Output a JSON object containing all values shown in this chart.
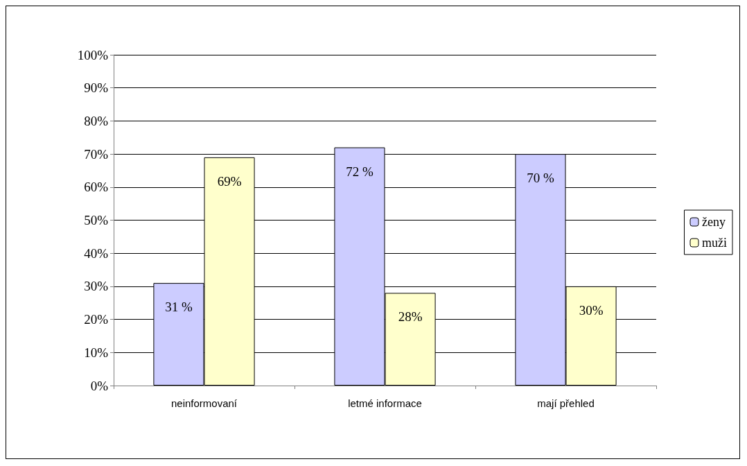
{
  "chart_data": {
    "type": "bar",
    "categories": [
      "neinformovaní",
      "letmé informace",
      "mají přehled"
    ],
    "series": [
      {
        "name": "ženy",
        "color": "#ccccff",
        "values": [
          31,
          72,
          70
        ],
        "value_labels": [
          "31 %",
          "72 %",
          "70 %"
        ]
      },
      {
        "name": "muži",
        "color": "#ffffcc",
        "values": [
          69,
          28,
          30
        ],
        "value_labels": [
          "69%",
          "28%",
          "30%"
        ]
      }
    ],
    "ylim": [
      0,
      100
    ],
    "yticks": [
      {
        "value": 0,
        "label": "0%"
      },
      {
        "value": 10,
        "label": "10%"
      },
      {
        "value": 20,
        "label": "20%"
      },
      {
        "value": 30,
        "label": "30%"
      },
      {
        "value": 40,
        "label": "40%"
      },
      {
        "value": 50,
        "label": "50%"
      },
      {
        "value": 60,
        "label": "60%"
      },
      {
        "value": 70,
        "label": "70%"
      },
      {
        "value": 80,
        "label": "80%"
      },
      {
        "value": 90,
        "label": "90%"
      },
      {
        "value": 100,
        "label": "100%"
      }
    ],
    "grid": "y",
    "legend": "right"
  }
}
